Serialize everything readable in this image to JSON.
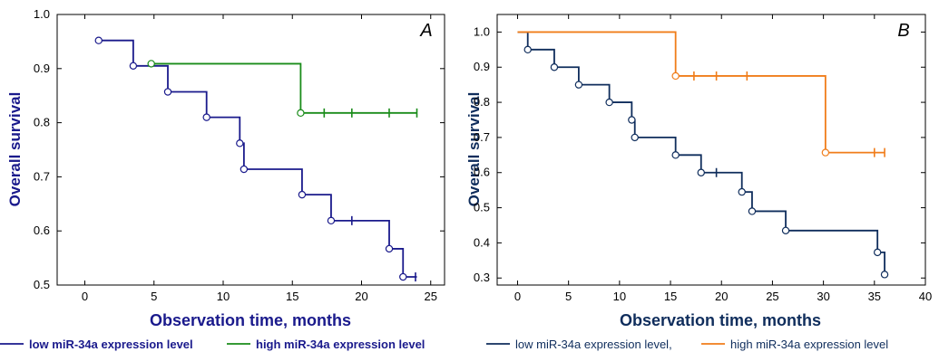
{
  "colors": {
    "a_low": "#1a1a8c",
    "a_high": "#1a8c1a",
    "a_axis_title": "#1a1a8c",
    "b_low": "#0f2d5c",
    "b_high": "#f07d1a",
    "b_axis_title": "#0f2d5c"
  },
  "legend_a": {
    "low": "low miR-34a expression level",
    "high": "high miR-34a expression level"
  },
  "legend_b": {
    "low": "low miR-34a expression level,",
    "high": "high miR-34a expression level"
  },
  "chart_data": [
    {
      "type": "line",
      "panel_label": "A",
      "xlabel": "Observation time, months",
      "ylabel": "Overall survival",
      "xlim": [
        -2,
        26
      ],
      "ylim": [
        0.5,
        1.0
      ],
      "xticks": [
        0,
        5,
        10,
        15,
        20,
        25
      ],
      "yticks": [
        0.5,
        0.6,
        0.7,
        0.8,
        0.9,
        1.0
      ],
      "ytick_decimals": 1,
      "grid": false,
      "legend_position": "bottom",
      "series": [
        {
          "name": "low miR-34a expression level",
          "color_key": "a_low",
          "steps": [
            [
              1,
              0.952
            ],
            [
              3.5,
              0.905
            ],
            [
              6,
              0.857
            ],
            [
              8.8,
              0.81
            ],
            [
              11.2,
              0.762
            ],
            [
              11.5,
              0.714
            ],
            [
              15.7,
              0.667
            ],
            [
              17.8,
              0.619
            ],
            [
              22,
              0.567
            ],
            [
              23,
              0.515
            ],
            [
              24,
              0.515
            ]
          ],
          "events": [
            [
              1,
              0.952
            ],
            [
              3.5,
              0.905
            ],
            [
              6,
              0.857
            ],
            [
              8.8,
              0.81
            ],
            [
              11.2,
              0.762
            ],
            [
              11.5,
              0.714
            ],
            [
              15.7,
              0.667
            ],
            [
              17.8,
              0.619
            ],
            [
              22,
              0.567
            ],
            [
              23,
              0.515
            ]
          ],
          "censored": [
            [
              19.3,
              0.619
            ],
            [
              23.9,
              0.515
            ]
          ]
        },
        {
          "name": "high miR-34a expression level",
          "color_key": "a_high",
          "steps": [
            [
              4.8,
              0.909
            ],
            [
              15.6,
              0.818
            ],
            [
              24,
              0.818
            ]
          ],
          "events": [
            [
              4.8,
              0.909
            ],
            [
              15.6,
              0.818
            ]
          ],
          "censored": [
            [
              17.3,
              0.818
            ],
            [
              19.3,
              0.818
            ],
            [
              22,
              0.818
            ],
            [
              24,
              0.818
            ]
          ]
        }
      ]
    },
    {
      "type": "line",
      "panel_label": "B",
      "xlabel": "Observation time, months",
      "ylabel": "Overall survival",
      "xlim": [
        -2,
        40
      ],
      "ylim": [
        0.28,
        1.05
      ],
      "xticks": [
        0,
        5,
        10,
        15,
        20,
        25,
        30,
        35,
        40
      ],
      "yticks": [
        0.3,
        0.4,
        0.5,
        0.6,
        0.7,
        0.8,
        0.9,
        1.0
      ],
      "ytick_decimals": 1,
      "grid": false,
      "legend_position": "bottom",
      "series": [
        {
          "name": "low miR-34a expression level,",
          "color_key": "b_low",
          "start": [
            0,
            1.0
          ],
          "steps": [
            [
              1,
              0.95
            ],
            [
              3.6,
              0.9
            ],
            [
              6,
              0.85
            ],
            [
              9,
              0.8
            ],
            [
              11.2,
              0.75
            ],
            [
              11.5,
              0.7
            ],
            [
              15.5,
              0.65
            ],
            [
              18,
              0.6
            ],
            [
              22,
              0.545
            ],
            [
              23,
              0.49
            ],
            [
              26.3,
              0.435
            ],
            [
              35.3,
              0.373
            ],
            [
              36,
              0.31
            ]
          ],
          "events": [
            [
              1,
              0.95
            ],
            [
              3.6,
              0.9
            ],
            [
              6,
              0.85
            ],
            [
              9,
              0.8
            ],
            [
              11.2,
              0.75
            ],
            [
              11.5,
              0.7
            ],
            [
              15.5,
              0.65
            ],
            [
              18,
              0.6
            ],
            [
              22,
              0.545
            ],
            [
              23,
              0.49
            ],
            [
              26.3,
              0.435
            ],
            [
              35.3,
              0.373
            ],
            [
              36,
              0.31
            ]
          ],
          "censored": [
            [
              19.5,
              0.6
            ]
          ]
        },
        {
          "name": "high miR-34a expression level",
          "color_key": "b_high",
          "start": [
            0,
            1.0
          ],
          "steps": [
            [
              15.5,
              0.875
            ],
            [
              30.2,
              0.657
            ],
            [
              36,
              0.657
            ]
          ],
          "events": [
            [
              15.5,
              0.875
            ],
            [
              30.2,
              0.657
            ]
          ],
          "censored": [
            [
              17.3,
              0.875
            ],
            [
              19.5,
              0.875
            ],
            [
              22.5,
              0.875
            ],
            [
              35,
              0.657
            ],
            [
              36,
              0.657
            ]
          ]
        }
      ]
    }
  ]
}
